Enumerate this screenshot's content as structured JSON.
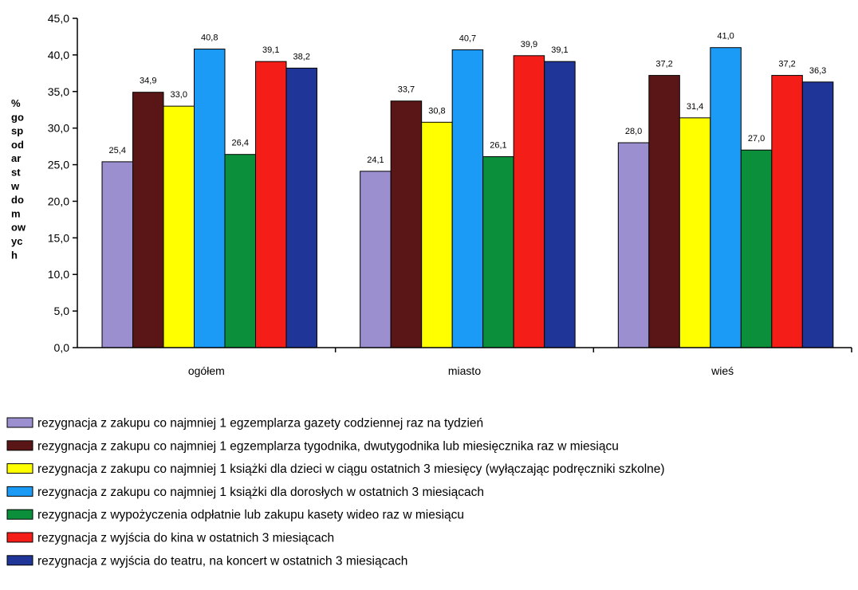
{
  "chart_data": {
    "type": "bar",
    "title": "",
    "xlabel": "",
    "ylabel_lines": [
      "%",
      "go",
      "sp",
      "od",
      "ar",
      "st",
      "w",
      "do",
      "m",
      "ow",
      "yc",
      "h"
    ],
    "ylim": [
      0,
      45
    ],
    "yticks": [
      "0,0",
      "5,0",
      "10,0",
      "15,0",
      "20,0",
      "25,0",
      "30,0",
      "35,0",
      "40,0",
      "45,0"
    ],
    "grid": false,
    "legend_position": "bottom",
    "categories": [
      "ogółem",
      "miasto",
      "wieś"
    ],
    "series": [
      {
        "name": "rezygnacja z zakupu co najmniej 1 egzemplarza gazety codziennej raz na tydzień",
        "color": "#9B8FCF",
        "values": [
          25.4,
          24.1,
          28.0
        ],
        "labels": [
          "25,4",
          "24,1",
          "28,0"
        ]
      },
      {
        "name": "rezygnacja z zakupu co najmniej 1 egzemplarza tygodnika, dwutygodnika lub miesięcznika raz w miesiącu",
        "color": "#5A1616",
        "values": [
          34.9,
          33.7,
          37.2
        ],
        "labels": [
          "34,9",
          "33,7",
          "37,2"
        ]
      },
      {
        "name": "rezygnacja z zakupu co najmniej 1 książki dla dzieci w ciągu ostatnich 3 miesięcy (wyłączając podręczniki szkolne)",
        "color": "#FFFF00",
        "values": [
          33.0,
          30.8,
          31.4
        ],
        "labels": [
          "33,0",
          "30,8",
          "31,4"
        ]
      },
      {
        "name": "rezygnacja z zakupu co najmniej 1 książki dla dorosłych w ostatnich 3 miesiącach",
        "color": "#1B9BF5",
        "values": [
          40.8,
          40.7,
          41.0
        ],
        "labels": [
          "40,8",
          "40,7",
          "41,0"
        ]
      },
      {
        "name": "rezygnacja z wypożyczenia odpłatnie lub zakupu kasety wideo raz w miesiącu",
        "color": "#0C8F3A",
        "values": [
          26.4,
          26.1,
          27.0
        ],
        "labels": [
          "26,4",
          "26,1",
          "27,0"
        ]
      },
      {
        "name": "rezygnacja z wyjścia do kina w ostatnich 3 miesiącach",
        "color": "#F51D17",
        "values": [
          39.1,
          39.9,
          37.2
        ],
        "labels": [
          "39,1",
          "39,9",
          "37,2"
        ]
      },
      {
        "name": "rezygnacja z wyjścia do teatru, na koncert w ostatnich 3 miesiącach",
        "color": "#1F3598",
        "values": [
          38.2,
          39.1,
          36.3
        ],
        "labels": [
          "38,2",
          "39,1",
          "36,3"
        ]
      }
    ]
  }
}
